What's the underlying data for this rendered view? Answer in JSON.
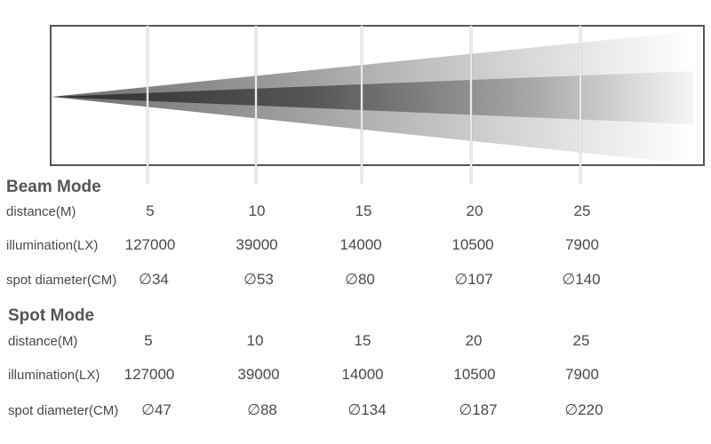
{
  "distances_label": [
    "5",
    "10",
    "15",
    "20",
    "25"
  ],
  "colors": {
    "frame": "#555555",
    "marker": "#b8b8b8",
    "beam_core": "#3a3a3a",
    "text": "#4a4a4a"
  },
  "sections": [
    {
      "title": "Beam Mode",
      "rows": [
        {
          "label": "distance(M)",
          "values": [
            "5",
            "10",
            "15",
            "20",
            "25"
          ]
        },
        {
          "label": "illumination(LX)",
          "values": [
            "127000",
            "39000",
            "14000",
            "10500",
            "7900"
          ]
        },
        {
          "label": "spot diameter(CM)",
          "values": [
            "∅34",
            "∅53",
            "∅80",
            "∅107",
            "∅140"
          ]
        }
      ]
    },
    {
      "title": "Spot Mode",
      "rows": [
        {
          "label": "distance(M)",
          "values": [
            "5",
            "10",
            "15",
            "20",
            "25"
          ]
        },
        {
          "label": "illumination(LX)",
          "values": [
            "127000",
            "39000",
            "14000",
            "10500",
            "7900"
          ]
        },
        {
          "label": "spot diameter(CM)",
          "values": [
            "∅47",
            "∅88",
            "∅134",
            "∅187",
            "∅220"
          ]
        }
      ]
    }
  ]
}
